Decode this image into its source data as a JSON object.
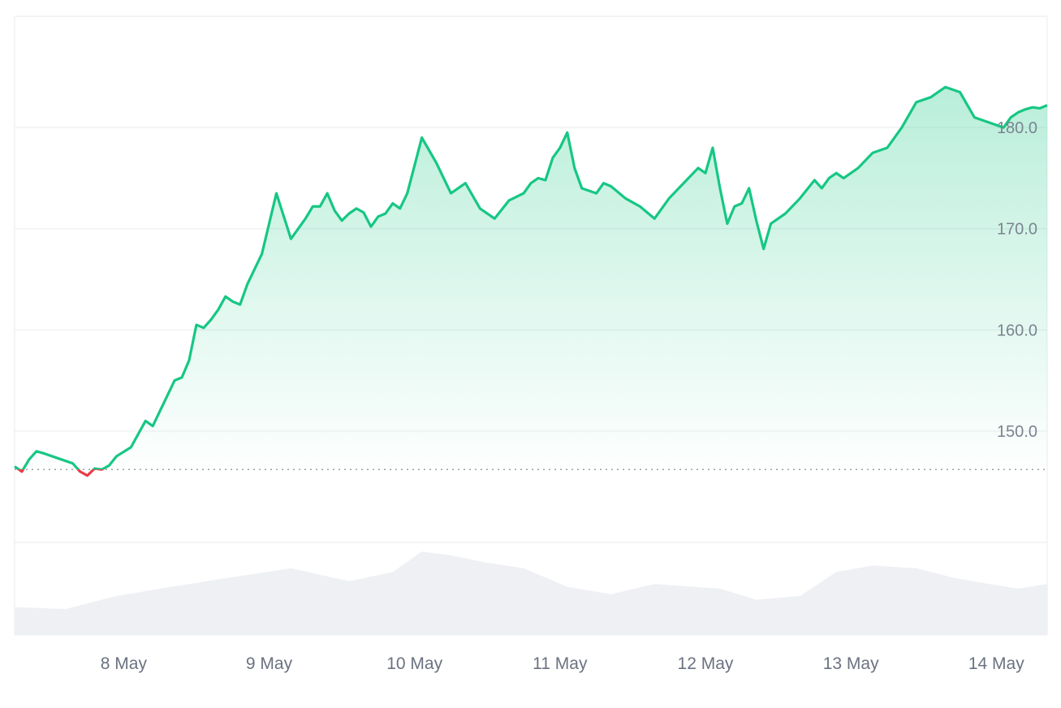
{
  "colors": {
    "up_line": "#16c784",
    "down_line": "#ea3943",
    "area_top": "#16c784",
    "volume": "#eef0f3",
    "grid": "#eceef1",
    "baseline": "#9aa0a6",
    "tick_text": "#7b8390"
  },
  "chart_data": {
    "type": "area",
    "y_tick_labels": [
      "180.0",
      "170.0",
      "160.0",
      "150.0"
    ],
    "y_ticks": [
      180,
      170,
      160,
      150
    ],
    "x_tick_labels": [
      "8 May",
      "9 May",
      "10 May",
      "11 May",
      "12 May",
      "13 May",
      "14 May"
    ],
    "x_ticks": [
      0.75,
      1.75,
      2.75,
      3.75,
      4.75,
      5.75,
      6.75
    ],
    "xlim": [
      0,
      7.1
    ],
    "ylim": [
      139,
      191
    ],
    "baseline": 146.2,
    "grid": true,
    "legend": "none",
    "price": {
      "x": [
        0.0,
        0.05,
        0.1,
        0.15,
        0.2,
        0.3,
        0.4,
        0.45,
        0.5,
        0.55,
        0.6,
        0.65,
        0.7,
        0.8,
        0.85,
        0.9,
        0.95,
        1.0,
        1.05,
        1.1,
        1.15,
        1.2,
        1.25,
        1.3,
        1.35,
        1.4,
        1.45,
        1.5,
        1.55,
        1.6,
        1.7,
        1.8,
        1.9,
        2.0,
        2.05,
        2.1,
        2.15,
        2.2,
        2.25,
        2.3,
        2.35,
        2.4,
        2.45,
        2.5,
        2.55,
        2.6,
        2.65,
        2.7,
        2.8,
        2.9,
        3.0,
        3.1,
        3.2,
        3.3,
        3.4,
        3.5,
        3.55,
        3.6,
        3.65,
        3.7,
        3.75,
        3.8,
        3.85,
        3.9,
        4.0,
        4.05,
        4.1,
        4.2,
        4.3,
        4.4,
        4.5,
        4.6,
        4.7,
        4.75,
        4.8,
        4.85,
        4.9,
        4.95,
        5.0,
        5.05,
        5.1,
        5.15,
        5.2,
        5.3,
        5.4,
        5.5,
        5.55,
        5.6,
        5.65,
        5.7,
        5.8,
        5.9,
        6.0,
        6.05,
        6.1,
        6.2,
        6.3,
        6.4,
        6.5,
        6.6,
        6.7,
        6.8,
        6.85,
        6.9,
        6.95,
        7.0,
        7.05,
        7.1
      ],
      "y": [
        146.5,
        146.0,
        147.2,
        148.0,
        147.8,
        147.3,
        146.8,
        146.0,
        145.6,
        146.3,
        146.2,
        146.6,
        147.5,
        148.4,
        149.7,
        151.0,
        150.5,
        152.0,
        153.5,
        155.0,
        155.3,
        157.0,
        160.5,
        160.2,
        161.0,
        162.0,
        163.3,
        162.8,
        162.5,
        164.5,
        167.5,
        173.5,
        169.0,
        171.0,
        172.2,
        172.2,
        173.5,
        171.8,
        170.8,
        171.5,
        172.0,
        171.6,
        170.2,
        171.2,
        171.5,
        172.5,
        172.0,
        173.5,
        179.0,
        176.5,
        173.5,
        174.5,
        172.0,
        171.0,
        172.8,
        173.5,
        174.5,
        175.0,
        174.8,
        177.0,
        178.0,
        179.5,
        176.0,
        174.0,
        173.5,
        174.5,
        174.2,
        173.0,
        172.2,
        171.0,
        173.0,
        174.5,
        176.0,
        175.5,
        178.0,
        174.0,
        170.5,
        172.2,
        172.5,
        174.0,
        170.8,
        168.0,
        170.5,
        171.5,
        173.0,
        174.8,
        174.0,
        175.0,
        175.5,
        175.0,
        176.0,
        177.5,
        178.0,
        179.0,
        180.0,
        182.5,
        183.0,
        184.0,
        183.5,
        181.0,
        180.5,
        180.0,
        181.0,
        181.5,
        181.8,
        182.0,
        181.9,
        182.2
      ]
    },
    "volume": {
      "x": [
        0.0,
        0.35,
        0.7,
        1.0,
        1.4,
        1.9,
        2.3,
        2.6,
        2.8,
        3.0,
        3.25,
        3.5,
        3.8,
        4.1,
        4.4,
        4.85,
        5.1,
        5.4,
        5.65,
        5.9,
        6.2,
        6.45,
        6.7,
        6.9,
        7.1
      ],
      "y": [
        0.3,
        0.28,
        0.42,
        0.5,
        0.6,
        0.72,
        0.58,
        0.68,
        0.9,
        0.86,
        0.78,
        0.72,
        0.52,
        0.44,
        0.55,
        0.5,
        0.38,
        0.42,
        0.68,
        0.75,
        0.72,
        0.62,
        0.55,
        0.5,
        0.55
      ]
    }
  }
}
